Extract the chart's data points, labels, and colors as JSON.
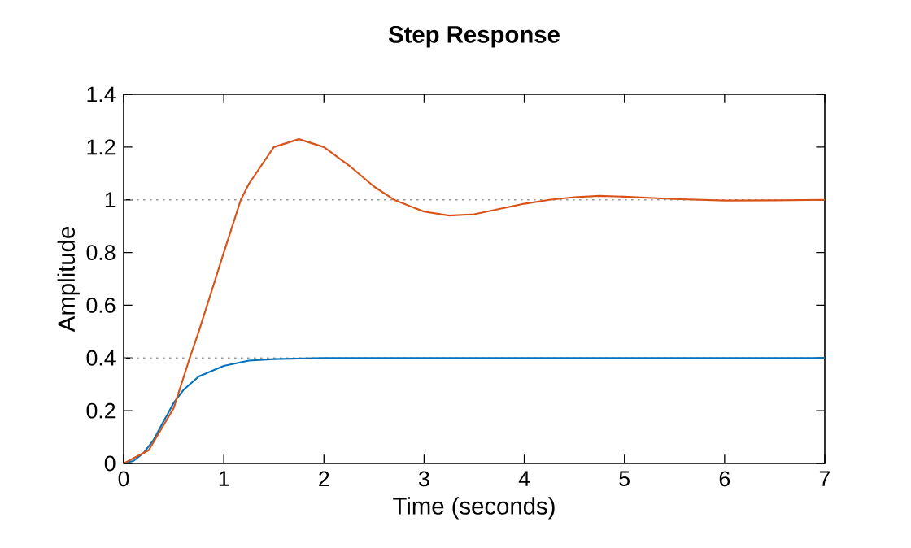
{
  "chart_data": {
    "type": "line",
    "title": "Step Response",
    "xlabel": "Time (seconds)",
    "ylabel": "Amplitude",
    "xlim": [
      0,
      7
    ],
    "xticks": [
      0,
      1,
      2,
      3,
      4,
      5,
      6,
      7
    ],
    "ylim": [
      0,
      1.4
    ],
    "yticks": [
      0,
      0.2,
      0.4,
      0.6,
      0.8,
      1,
      1.2,
      1.4
    ],
    "marker": "none",
    "line_style": "solid",
    "series": [
      {
        "color": "#0072bd",
        "x": [
          0,
          0.1,
          0.2,
          0.3,
          0.4,
          0.5,
          0.6,
          0.75,
          1.0,
          1.25,
          1.5,
          2,
          3,
          4,
          5,
          6,
          7
        ],
        "values": [
          0,
          0.01,
          0.04,
          0.09,
          0.16,
          0.23,
          0.28,
          0.33,
          0.37,
          0.39,
          0.396,
          0.4,
          0.4,
          0.4,
          0.4,
          0.4,
          0.4
        ]
      },
      {
        "color": "#d95319",
        "x": [
          0,
          0.25,
          0.5,
          0.66,
          0.75,
          1.0,
          1.17,
          1.25,
          1.5,
          1.75,
          2.0,
          2.25,
          2.5,
          2.7,
          3.0,
          3.25,
          3.5,
          3.75,
          4.0,
          4.25,
          4.5,
          4.75,
          5.0,
          5.5,
          6.0,
          6.5,
          7
        ],
        "values": [
          0,
          0.05,
          0.21,
          0.4,
          0.5,
          0.8,
          1.0,
          1.06,
          1.2,
          1.23,
          1.2,
          1.13,
          1.05,
          1.0,
          0.955,
          0.94,
          0.945,
          0.965,
          0.985,
          1.0,
          1.01,
          1.015,
          1.012,
          1.003,
          0.997,
          0.998,
          1.0
        ]
      }
    ],
    "ref_lines": [
      {
        "axis": "y",
        "value": 0.4,
        "color": "#999999",
        "line_style": "dotted"
      },
      {
        "axis": "y",
        "value": 1,
        "color": "#999999",
        "line_style": "dotted"
      }
    ]
  }
}
